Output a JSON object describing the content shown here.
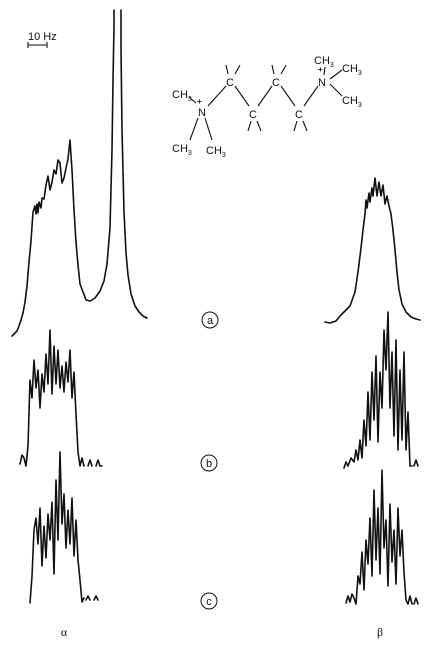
{
  "scale_bar": {
    "label": "10 Hz"
  },
  "structure": {
    "left_methyl_top": "CH",
    "left_methyl_mid": "CH",
    "left_methyl_bot": "CH",
    "right_methyl_top": "CH",
    "right_methyl_right": "CH",
    "right_methyl_bot": "CH",
    "sub3": "3",
    "nitrogen": "N",
    "plus": "+",
    "carbon": "C"
  },
  "panels": [
    {
      "id": "a",
      "label": "a"
    },
    {
      "id": "b",
      "label": "b"
    },
    {
      "id": "c",
      "label": "c"
    }
  ],
  "footers": {
    "left": "α",
    "right": "β"
  }
}
